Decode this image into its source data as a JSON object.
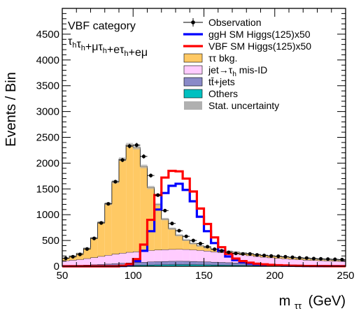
{
  "chart_data": {
    "type": "histogram",
    "xlabel": "m",
    "xlabel_sub": "ττ",
    "xlabel_unit": "(GeV)",
    "ylabel": "Events / Bin",
    "xlim": [
      50,
      250
    ],
    "ylim": [
      0,
      5000
    ],
    "xticks": [
      "50",
      "100",
      "150",
      "200",
      "250"
    ],
    "yticks": [
      "0",
      "500",
      "1000",
      "1500",
      "2000",
      "2500",
      "3000",
      "3500",
      "4000",
      "4500"
    ],
    "category_label": "VBF category",
    "category_channels": [
      {
        "base": "τ",
        "sub": "h"
      },
      {
        "base": "τ",
        "sub": "h"
      },
      {
        "base": "+μτ",
        "sub": "h"
      },
      {
        "base": "+eτ",
        "sub": "h"
      },
      {
        "base": "+eμ",
        "sub": ""
      }
    ],
    "bin_edges": [
      50,
      55,
      60,
      65,
      70,
      75,
      80,
      85,
      90,
      95,
      100,
      105,
      110,
      115,
      120,
      125,
      130,
      135,
      140,
      145,
      150,
      155,
      160,
      165,
      170,
      175,
      180,
      185,
      190,
      195,
      200,
      205,
      210,
      215,
      220,
      225,
      230,
      235,
      240,
      245,
      250
    ],
    "series": [
      {
        "name": "Others",
        "color": "#00c0c0",
        "style": "stack",
        "values": [
          5,
          5,
          5,
          6,
          8,
          10,
          12,
          15,
          18,
          20,
          22,
          25,
          28,
          30,
          32,
          34,
          35,
          35,
          34,
          32,
          30,
          28,
          26,
          24,
          22,
          20,
          18,
          16,
          14,
          12,
          10,
          9,
          8,
          7,
          6,
          5,
          5,
          4,
          4,
          3
        ]
      },
      {
        "name": "tt+jets",
        "color": "#8a8ac8",
        "style": "stack",
        "values": [
          15,
          16,
          17,
          20,
          24,
          28,
          33,
          38,
          43,
          48,
          52,
          56,
          60,
          62,
          64,
          65,
          65,
          64,
          62,
          60,
          57,
          54,
          51,
          48,
          45,
          42,
          39,
          36,
          33,
          30,
          28,
          26,
          24,
          22,
          20,
          18,
          17,
          16,
          15,
          14
        ]
      },
      {
        "name": "jet→τh mis-ID",
        "color": "#ffccff",
        "style": "stack",
        "values": [
          90,
          100,
          110,
          125,
          140,
          155,
          170,
          185,
          195,
          205,
          210,
          215,
          220,
          225,
          228,
          230,
          230,
          228,
          224,
          218,
          210,
          200,
          190,
          180,
          170,
          160,
          150,
          140,
          132,
          125,
          118,
          112,
          106,
          100,
          95,
          92,
          88,
          85,
          82,
          80
        ]
      },
      {
        "name": "ττ bkg.",
        "color": "#ffc964",
        "style": "stack",
        "values": [
          50,
          80,
          120,
          200,
          380,
          660,
          1000,
          1400,
          1820,
          2080,
          2020,
          1640,
          1220,
          880,
          590,
          400,
          270,
          180,
          120,
          85,
          65,
          50,
          45,
          40,
          38,
          38,
          38,
          38,
          36,
          35,
          34,
          32,
          30,
          28,
          26,
          24,
          22,
          20,
          20,
          19
        ]
      },
      {
        "name": "ggH SM Higgs(125)x50",
        "color": "#0000ff",
        "style": "line",
        "values": [
          0,
          0,
          0,
          0,
          0,
          0,
          0,
          0,
          5,
          30,
          100,
          300,
          680,
          1100,
          1420,
          1560,
          1600,
          1480,
          1260,
          960,
          680,
          450,
          300,
          190,
          120,
          80,
          55,
          40,
          30,
          22,
          16,
          12,
          9,
          7,
          5,
          4,
          3,
          2,
          2,
          1
        ]
      },
      {
        "name": "VBF SM Higgs(125)x50",
        "color": "#ff0000",
        "style": "line",
        "values": [
          0,
          0,
          0,
          0,
          0,
          0,
          0,
          0,
          10,
          40,
          140,
          420,
          900,
          1380,
          1720,
          1850,
          1840,
          1700,
          1450,
          1120,
          820,
          560,
          370,
          240,
          150,
          100,
          70,
          50,
          38,
          28,
          20,
          15,
          11,
          8,
          6,
          5,
          4,
          3,
          2,
          2
        ]
      }
    ],
    "observation": {
      "name": "Observation",
      "values": [
        155,
        185,
        230,
        335,
        540,
        840,
        1210,
        1640,
        2060,
        2330,
        2350,
        2130,
        1760,
        1380,
        1080,
        830,
        690,
        580,
        500,
        440,
        380,
        330,
        300,
        270,
        250,
        240,
        240,
        220,
        210,
        200,
        195,
        185,
        175,
        165,
        160,
        150,
        145,
        140,
        135,
        130
      ]
    },
    "uncertainty_label": "Stat. uncertainty",
    "uncertainty_color": "#b0b0b0",
    "legend": [
      {
        "label": "Observation",
        "kind": "point"
      },
      {
        "label": "ggH SM Higgs(125)x50",
        "kind": "line",
        "color": "#0000ff"
      },
      {
        "label": "VBF SM Higgs(125)x50",
        "kind": "line",
        "color": "#ff0000"
      },
      {
        "label": "ττ bkg.",
        "kind": "box",
        "color": "#ffc964"
      },
      {
        "label": "jet→τ",
        "label_sub": "h",
        "label_rest": " mis-ID",
        "kind": "box",
        "color": "#ffccff"
      },
      {
        "label": "tt̄+jets",
        "kind": "box",
        "color": "#8a8ac8"
      },
      {
        "label": "Others",
        "kind": "box",
        "color": "#00c0c0"
      },
      {
        "label": "Stat. uncertainty",
        "kind": "box",
        "color": "#b0b0b0"
      }
    ],
    "legend_position": "top-right",
    "grid": false
  }
}
